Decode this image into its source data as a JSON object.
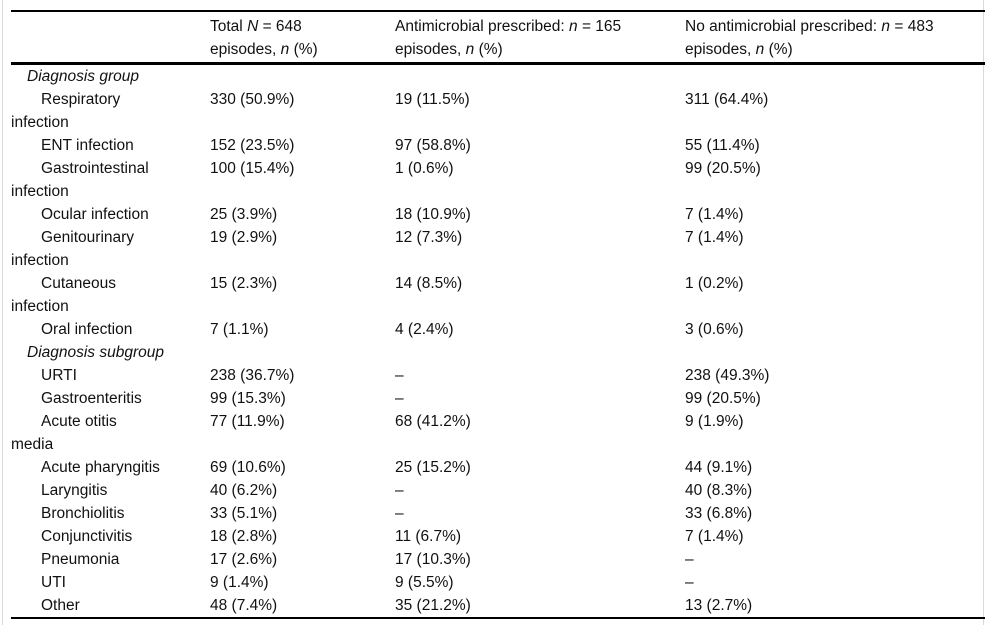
{
  "table": {
    "columns": [
      "",
      "Total N = 648\nepisodes, n (%)",
      "Antimicrobial prescribed: n = 165\nepisodes, n (%)",
      "No antimicrobial prescribed: n = 483\nepisodes, n (%)"
    ],
    "empty_cell_marker": "–",
    "sections": [
      {
        "title": "Diagnosis group",
        "rows": [
          {
            "label": "Respiratory\ninfection",
            "total": "330 (50.9%)",
            "prescribed": "19 (11.5%)",
            "no_prescribed": "311 (64.4%)"
          },
          {
            "label": "ENT infection",
            "total": "152 (23.5%)",
            "prescribed": "97 (58.8%)",
            "no_prescribed": "55 (11.4%)"
          },
          {
            "label": "Gastrointestinal\ninfection",
            "total": "100 (15.4%)",
            "prescribed": "1 (0.6%)",
            "no_prescribed": "99 (20.5%)"
          },
          {
            "label": "Ocular infection",
            "total": "25 (3.9%)",
            "prescribed": "18 (10.9%)",
            "no_prescribed": "7 (1.4%)"
          },
          {
            "label": "Genitourinary\ninfection",
            "total": "19 (2.9%)",
            "prescribed": "12 (7.3%)",
            "no_prescribed": "7 (1.4%)"
          },
          {
            "label": "Cutaneous\ninfection",
            "total": "15 (2.3%)",
            "prescribed": "14 (8.5%)",
            "no_prescribed": "1 (0.2%)"
          },
          {
            "label": "Oral infection",
            "total": "7 (1.1%)",
            "prescribed": "4 (2.4%)",
            "no_prescribed": "3 (0.6%)"
          }
        ]
      },
      {
        "title": "Diagnosis subgroup",
        "rows": [
          {
            "label": "URTI",
            "total": "238 (36.7%)",
            "prescribed": "–",
            "no_prescribed": "238 (49.3%)"
          },
          {
            "label": "Gastroenteritis",
            "total": "99 (15.3%)",
            "prescribed": "–",
            "no_prescribed": "99 (20.5%)"
          },
          {
            "label": "Acute otitis\nmedia",
            "total": "77 (11.9%)",
            "prescribed": "68 (41.2%)",
            "no_prescribed": "9 (1.9%)"
          },
          {
            "label": "Acute pharyngitis",
            "total": "69 (10.6%)",
            "prescribed": "25 (15.2%)",
            "no_prescribed": "44 (9.1%)"
          },
          {
            "label": "Laryngitis",
            "total": "40 (6.2%)",
            "prescribed": "–",
            "no_prescribed": "40 (8.3%)"
          },
          {
            "label": "Bronchiolitis",
            "total": "33 (5.1%)",
            "prescribed": "–",
            "no_prescribed": "33 (6.8%)"
          },
          {
            "label": "Conjunctivitis",
            "total": "18 (2.8%)",
            "prescribed": "11 (6.7%)",
            "no_prescribed": "7 (1.4%)"
          },
          {
            "label": "Pneumonia",
            "total": "17 (2.6%)",
            "prescribed": "17 (10.3%)",
            "no_prescribed": "–"
          },
          {
            "label": "UTI",
            "total": "9 (1.4%)",
            "prescribed": "9 (5.5%)",
            "no_prescribed": "–"
          },
          {
            "label": "Other",
            "total": "48 (7.4%)",
            "prescribed": "35 (21.2%)",
            "no_prescribed": "13 (2.7%)"
          }
        ]
      }
    ]
  },
  "colors": {
    "text": "#111111",
    "rule": "#000000",
    "frame_edge": "#d9d9d9"
  }
}
